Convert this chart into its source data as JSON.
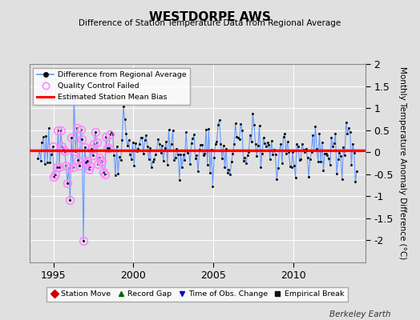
{
  "title": "WESTDORPE AWS",
  "subtitle": "Difference of Station Temperature Data from Regional Average",
  "ylabel": "Monthly Temperature Anomaly Difference (°C)",
  "credit": "Berkeley Earth",
  "ylim": [
    -2.5,
    2.0
  ],
  "yticks": [
    -2.0,
    -1.5,
    -1.0,
    -0.5,
    0.0,
    0.5,
    1.0,
    1.5,
    2.0
  ],
  "xlim": [
    1993.5,
    2014.5
  ],
  "xticks": [
    1995,
    2000,
    2005,
    2010
  ],
  "bias_value": 0.04,
  "bias_color": "#ff0000",
  "line_color": "#6699ff",
  "dot_color": "#111111",
  "qc_color": "#ff88ff",
  "bg_color": "#e0e0e0",
  "grid_color": "#ffffff",
  "legend1_entries": [
    "Difference from Regional Average",
    "Quality Control Failed",
    "Estimated Station Mean Bias"
  ],
  "legend2_entries": [
    "Station Move",
    "Record Gap",
    "Time of Obs. Change",
    "Empirical Break"
  ],
  "legend2_colors": [
    "#cc0000",
    "#006600",
    "#0000cc",
    "#111111"
  ],
  "legend2_markers": [
    "D",
    "^",
    "v",
    "s"
  ]
}
